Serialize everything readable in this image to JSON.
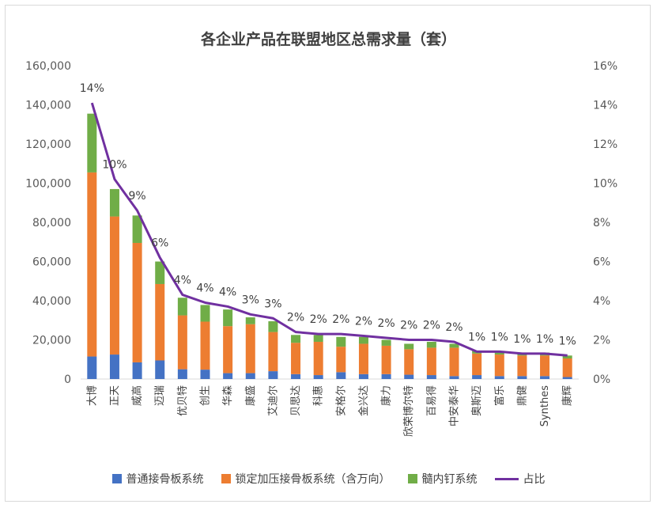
{
  "chart_data": {
    "type": "bar",
    "stacked": true,
    "title": "各企业产品在联盟地区总需求量（套）",
    "categories": [
      "大博",
      "正天",
      "威高",
      "迈瑞",
      "优贝特",
      "创生",
      "华森",
      "康盛",
      "艾迪尔",
      "贝思达",
      "科惠",
      "安格尔",
      "金兴达",
      "康力",
      "欣荣博尔特",
      "百易得",
      "中安泰华",
      "奥斯迈",
      "富乐",
      "鼎健",
      "Synthes",
      "康辉"
    ],
    "series": [
      {
        "name": "普通接骨板系统",
        "color": "#4472c4",
        "values": [
          11500,
          12500,
          8500,
          9500,
          5000,
          4800,
          3000,
          3000,
          4000,
          2500,
          2000,
          3500,
          2500,
          2500,
          2200,
          2000,
          1500,
          2000,
          1500,
          1500,
          1500,
          1000
        ]
      },
      {
        "name": "锁定加压接骨板系统（含万向）",
        "color": "#ed7d31",
        "values": [
          94000,
          70500,
          61000,
          39000,
          27500,
          24500,
          24000,
          25000,
          20000,
          16000,
          17000,
          13000,
          15500,
          14500,
          13000,
          14000,
          14500,
          11000,
          11000,
          10500,
          10500,
          9500
        ]
      },
      {
        "name": "髓内钉系统",
        "color": "#70ad47",
        "values": [
          30000,
          14000,
          14000,
          11500,
          9000,
          8500,
          8500,
          3500,
          5500,
          4000,
          3500,
          5000,
          3500,
          3000,
          2800,
          3000,
          2000,
          1500,
          1000,
          1000,
          1500,
          1500
        ]
      }
    ],
    "line": {
      "name": "占比",
      "color": "#7030a0",
      "values": [
        14.1,
        10.2,
        8.6,
        6.2,
        4.3,
        3.9,
        3.7,
        3.3,
        3.1,
        2.4,
        2.3,
        2.3,
        2.2,
        2.1,
        2.0,
        2.0,
        1.9,
        1.4,
        1.4,
        1.3,
        1.3,
        1.2
      ],
      "labels": [
        "14%",
        "10%",
        "9%",
        "6%",
        "4%",
        "4%",
        "4%",
        "3%",
        "3%",
        "2%",
        "2%",
        "2%",
        "2%",
        "2%",
        "2%",
        "2%",
        "2%",
        "1%",
        "1%",
        "1%",
        "1%",
        "1%"
      ]
    },
    "y_left": {
      "min": 0,
      "max": 160000,
      "ticks": [
        "0",
        "20,000",
        "40,000",
        "60,000",
        "80,000",
        "100,000",
        "120,000",
        "140,000",
        "160,000"
      ]
    },
    "y_right": {
      "min": 0,
      "max": 16,
      "ticks": [
        "0%",
        "2%",
        "4%",
        "6%",
        "8%",
        "10%",
        "12%",
        "14%",
        "16%"
      ]
    },
    "legend_position": "bottom",
    "grid": false
  }
}
